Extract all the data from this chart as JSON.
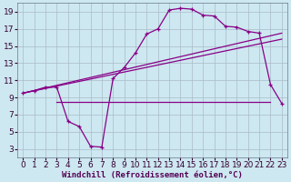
{
  "xlabel": "Windchill (Refroidissement éolien,°C)",
  "background_color": "#cde8f0",
  "grid_color": "#aabbc8",
  "line_color": "#880088",
  "xlim": [
    -0.5,
    23.5
  ],
  "ylim": [
    2,
    20
  ],
  "xticks": [
    0,
    1,
    2,
    3,
    4,
    5,
    6,
    7,
    8,
    9,
    10,
    11,
    12,
    13,
    14,
    15,
    16,
    17,
    18,
    19,
    20,
    21,
    22,
    23
  ],
  "yticks": [
    3,
    5,
    7,
    9,
    11,
    13,
    15,
    17,
    19
  ],
  "curve1_x": [
    0,
    1,
    2,
    3,
    4,
    5,
    6,
    7,
    8,
    9,
    10,
    11,
    12,
    13,
    14,
    15,
    16,
    17,
    18,
    19,
    20,
    21,
    22,
    23
  ],
  "curve1_y": [
    9.5,
    9.8,
    10.2,
    10.2,
    6.2,
    5.6,
    3.3,
    3.2,
    11.2,
    12.5,
    14.2,
    16.4,
    17.0,
    19.2,
    19.4,
    19.3,
    18.6,
    18.5,
    17.3,
    17.2,
    16.7,
    16.5,
    10.5,
    8.3
  ],
  "curve2_x": [
    0,
    23
  ],
  "curve2_y": [
    9.5,
    15.8
  ],
  "curve3_x": [
    0,
    23
  ],
  "curve3_y": [
    9.5,
    16.5
  ],
  "curve4_x": [
    3,
    22
  ],
  "curve4_y": [
    8.5,
    8.5
  ],
  "font_size_label": 6.5,
  "font_size_tick": 6.5
}
